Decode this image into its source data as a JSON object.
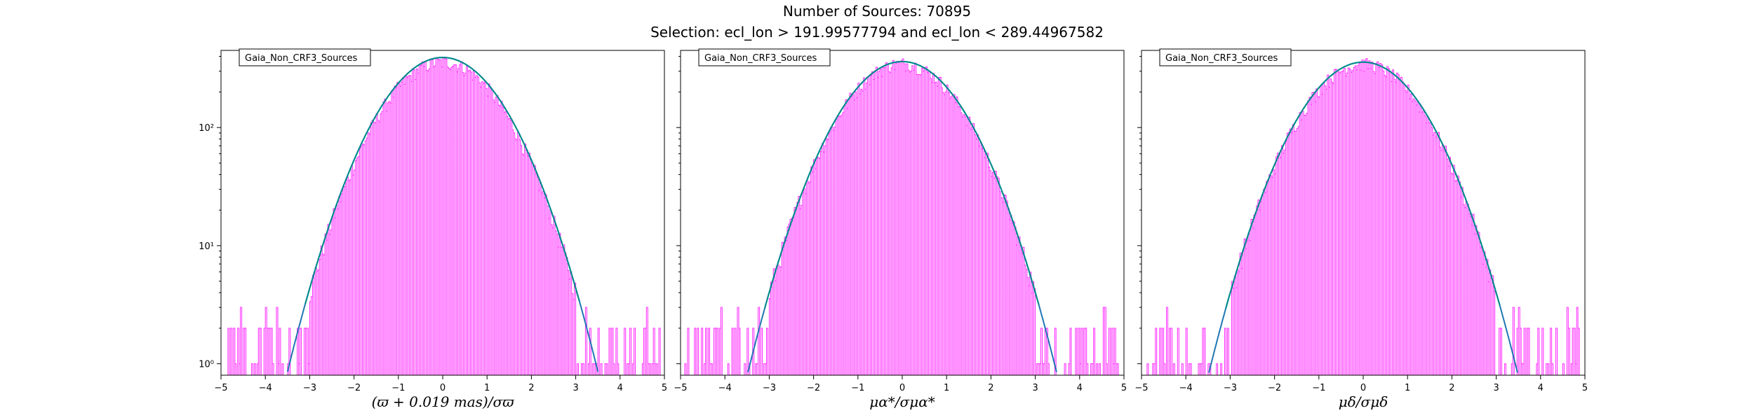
{
  "header": {
    "title": "Number of Sources: 70895",
    "subtitle": "Selection: ecl_lon > 191.99577794 and ecl_lon < 289.44967582"
  },
  "colors": {
    "histogram": "#ff00ff",
    "fit_teal": "#008b8b",
    "fit_blue": "#1f77b4"
  },
  "chart_data": [
    {
      "type": "line",
      "legend": "Gaia_Non_CRF3_Sources",
      "legend_position": "upper-left",
      "xlabel": "(ϖ + 0.019 mas)/σϖ",
      "xlim": [
        -5,
        5
      ],
      "ylim": [
        0.8,
        450
      ],
      "yscale": "log",
      "xticks": [
        "−5",
        "−4",
        "−3",
        "−2",
        "−1",
        "0",
        "1",
        "2",
        "3",
        "4",
        "5"
      ],
      "yticks": [
        {
          "value": 1,
          "label": "10⁰"
        },
        {
          "value": 10,
          "label": "10¹"
        },
        {
          "value": 100,
          "label": "10²"
        }
      ],
      "series": [
        {
          "kind": "histogram",
          "peak": 355,
          "x": [
            -5,
            -4.5,
            -4,
            -3.8,
            -3.6,
            -3.4,
            -3.2,
            -3,
            -2.8,
            -2.6,
            -2.4,
            -2.2,
            -2,
            -1.5,
            -1,
            -0.5,
            0,
            0.5,
            1,
            1.5,
            2,
            2.2,
            2.4,
            2.6,
            2.8,
            3,
            3.2,
            3.4,
            3.6,
            3.8,
            4,
            4.5,
            4.8
          ],
          "values": [
            1,
            1,
            1,
            1,
            2,
            3,
            4,
            6,
            9,
            15,
            25,
            40,
            60,
            140,
            240,
            320,
            355,
            320,
            240,
            140,
            60,
            40,
            25,
            15,
            9,
            6,
            4,
            3,
            2,
            1,
            1,
            1,
            1
          ]
        },
        {
          "kind": "fit",
          "peak": 392,
          "sigma": 1.0,
          "xrange": [
            -3.7,
            3.7
          ]
        }
      ]
    },
    {
      "type": "line",
      "legend": "Gaia_Non_CRF3_Sources",
      "legend_position": "upper-left",
      "xlabel": "μα*/σμα*",
      "xlim": [
        -5,
        5
      ],
      "ylim": [
        0.8,
        450
      ],
      "yscale": "log",
      "xticks": [
        "−5",
        "−4",
        "−3",
        "−2",
        "−1",
        "0",
        "1",
        "2",
        "3",
        "4",
        "5"
      ],
      "series": [
        {
          "kind": "histogram",
          "peak": 345,
          "x": [
            -5,
            -4.5,
            -4,
            -3.8,
            -3.6,
            -3.4,
            -3.2,
            -3,
            -2.8,
            -2.6,
            -2.4,
            -2.2,
            -2,
            -1.5,
            -1,
            -0.5,
            0,
            0.5,
            1,
            1.5,
            2,
            2.2,
            2.4,
            2.6,
            2.8,
            3,
            3.2,
            3.4,
            3.6,
            3.8,
            4,
            4.5,
            5
          ],
          "values": [
            1,
            1,
            1,
            1,
            2,
            3,
            4,
            6,
            9,
            15,
            25,
            40,
            60,
            140,
            240,
            320,
            345,
            320,
            240,
            140,
            60,
            40,
            25,
            15,
            9,
            6,
            4,
            3,
            2,
            1,
            1,
            1,
            1
          ]
        },
        {
          "kind": "fit",
          "peak": 362,
          "sigma": 1.0,
          "xrange": [
            -3.6,
            3.6
          ]
        }
      ]
    },
    {
      "type": "line",
      "legend": "Gaia_Non_CRF3_Sources",
      "legend_position": "upper-left",
      "xlabel": "μδ/σμδ",
      "xlim": [
        -5,
        5
      ],
      "ylim": [
        0.8,
        450
      ],
      "yscale": "log",
      "xticks": [
        "−5",
        "−4",
        "−3",
        "−2",
        "−1",
        "0",
        "1",
        "2",
        "3",
        "4",
        "5"
      ],
      "series": [
        {
          "kind": "histogram",
          "peak": 340,
          "x": [
            -5,
            -4.5,
            -4,
            -3.8,
            -3.6,
            -3.4,
            -3.2,
            -3,
            -2.8,
            -2.6,
            -2.4,
            -2.2,
            -2,
            -1.5,
            -1,
            -0.5,
            0,
            0.5,
            1,
            1.5,
            2,
            2.2,
            2.4,
            2.6,
            2.8,
            3,
            3.2,
            3.4,
            3.6,
            3.8,
            4,
            4.5,
            4.8
          ],
          "values": [
            1,
            1,
            1,
            1,
            2,
            3,
            4,
            6,
            9,
            15,
            25,
            40,
            60,
            140,
            240,
            320,
            340,
            320,
            240,
            140,
            60,
            40,
            25,
            15,
            9,
            6,
            4,
            3,
            2,
            1,
            1,
            1,
            1
          ]
        },
        {
          "kind": "fit",
          "peak": 358,
          "sigma": 1.0,
          "xrange": [
            -3.7,
            3.7
          ]
        }
      ]
    }
  ]
}
